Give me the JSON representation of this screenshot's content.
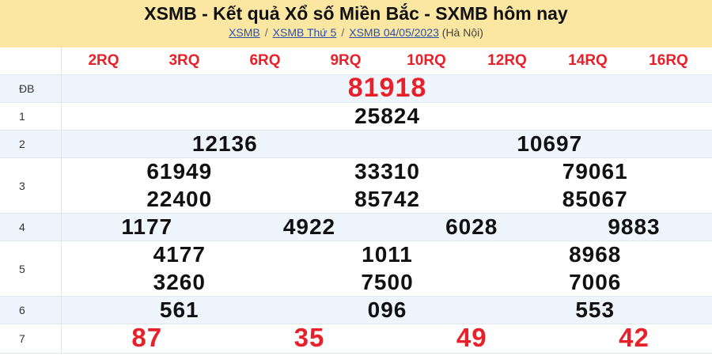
{
  "header": {
    "title": "XSMB - Kết quả Xổ số Miền Bắc - SXMB hôm nay",
    "breadcrumb": [
      {
        "label": "XSMB"
      },
      {
        "label": "XSMB Thứ 5"
      },
      {
        "label": "XSMB 04/05/2023"
      }
    ],
    "separator": "/",
    "location": "(Hà Nội)"
  },
  "codes": [
    "2RQ",
    "3RQ",
    "6RQ",
    "9RQ",
    "10RQ",
    "12RQ",
    "14RQ",
    "16RQ"
  ],
  "prizes": [
    {
      "label": "ĐB",
      "numbers": [
        "81918"
      ]
    },
    {
      "label": "1",
      "numbers": [
        "25824"
      ]
    },
    {
      "label": "2",
      "numbers": [
        "12136",
        "10697"
      ]
    },
    {
      "label": "3",
      "numbers": [
        "61949",
        "33310",
        "79061",
        "22400",
        "85742",
        "85067"
      ]
    },
    {
      "label": "4",
      "numbers": [
        "1177",
        "4922",
        "6028",
        "9883"
      ]
    },
    {
      "label": "5",
      "numbers": [
        "4177",
        "1011",
        "8968",
        "3260",
        "7500",
        "7006"
      ]
    },
    {
      "label": "6",
      "numbers": [
        "561",
        "096",
        "553"
      ]
    },
    {
      "label": "7",
      "numbers": [
        "87",
        "35",
        "49",
        "42"
      ]
    }
  ],
  "colors": {
    "header_bg": "#fbe7a1",
    "accent_red": "#e8202a",
    "row_alt": "#eef5fc",
    "link": "#2a4fb0"
  }
}
